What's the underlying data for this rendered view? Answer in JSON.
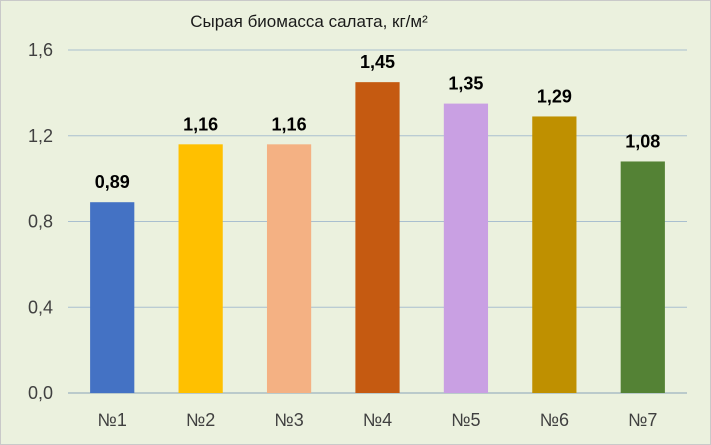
{
  "chart_data": {
    "type": "bar",
    "title": "Сырая биомасса салата, кг/м²",
    "xlabel": "",
    "ylabel": "",
    "categories": [
      "№1",
      "№2",
      "№3",
      "№4",
      "№5",
      "№6",
      "№7"
    ],
    "values": [
      0.89,
      1.16,
      1.16,
      1.45,
      1.35,
      1.29,
      1.08
    ],
    "value_labels": [
      "0,89",
      "1,16",
      "1,16",
      "1,45",
      "1,35",
      "1,29",
      "1,08"
    ],
    "colors": [
      "#4472c4",
      "#ffc000",
      "#f4b183",
      "#c55a11",
      "#c9a0e3",
      "#bf9000",
      "#548235"
    ],
    "ylim": [
      0,
      1.6
    ],
    "yticks": [
      0,
      0.4,
      0.8,
      1.2,
      1.6
    ],
    "ytick_labels": [
      "0,0",
      "0,4",
      "0,8",
      "1,2",
      "1,6"
    ],
    "grid": true,
    "legend": "none",
    "background": "#ebf1de",
    "gridline_color": "#a9bfcf"
  }
}
